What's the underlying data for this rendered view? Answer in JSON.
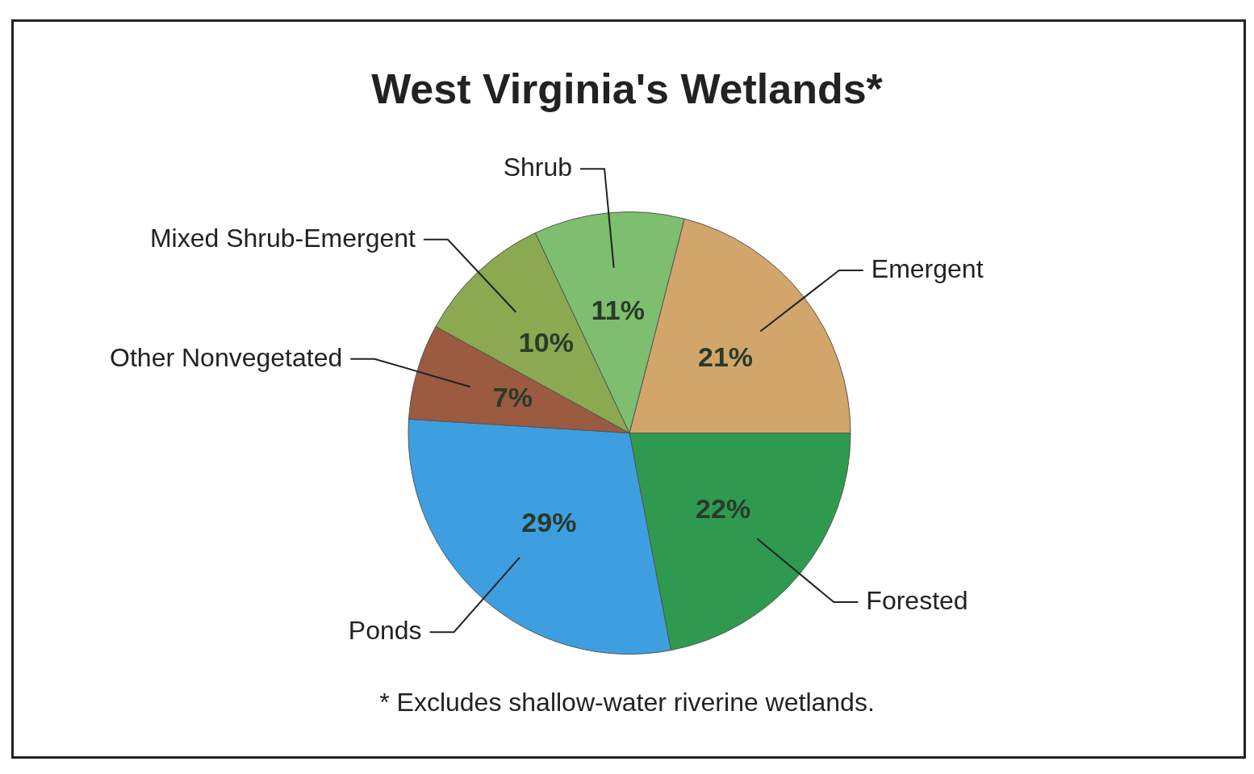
{
  "chart_data": {
    "type": "pie",
    "title": "West Virginia's Wetlands*",
    "categories": [
      "Emergent",
      "Forested",
      "Ponds",
      "Other Nonvegetated",
      "Mixed Shrub-Emergent",
      "Shrub"
    ],
    "values": [
      21,
      22,
      29,
      7,
      10,
      11
    ],
    "value_labels": [
      "21%",
      "22%",
      "29%",
      "7%",
      "10%",
      "11%"
    ],
    "colors": [
      "#d2a66a",
      "#2f9a4f",
      "#3d9fe0",
      "#9a5b40",
      "#8aa951",
      "#7dbf6e"
    ],
    "legend": false,
    "annotations": [
      "* Excludes shallow-water riverine wetlands."
    ]
  }
}
